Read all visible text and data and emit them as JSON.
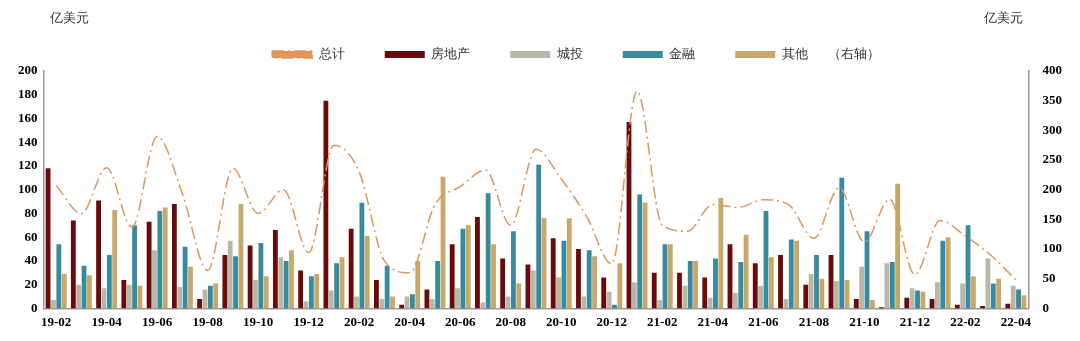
{
  "chart_data": {
    "type": "bar",
    "ylabel": "亿美元",
    "y2label": "亿美元",
    "categories": [
      "19-02",
      null,
      "19-04",
      null,
      "19-06",
      null,
      "19-08",
      null,
      "19-10",
      null,
      "19-12",
      null,
      "20-02",
      null,
      "20-04",
      null,
      "20-06",
      null,
      "20-08",
      null,
      "20-10",
      null,
      "20-12",
      null,
      "21-02",
      null,
      "21-04",
      null,
      "21-06",
      null,
      "21-08",
      null,
      "21-10",
      null,
      "21-12",
      null,
      "22-02",
      null,
      "22-04"
    ],
    "series": [
      {
        "name": "房地产",
        "color": "#6b0a0a",
        "values": [
          118,
          74,
          91,
          24,
          73,
          88,
          8,
          45,
          53,
          66,
          32,
          175,
          67,
          24,
          3,
          16,
          54,
          77,
          42,
          37,
          59,
          50,
          26,
          157,
          30,
          30,
          26,
          54,
          38,
          45,
          20,
          45,
          8,
          1,
          9,
          8,
          3,
          2,
          4
        ]
      },
      {
        "name": "城投",
        "color": "#b8b8a8",
        "values": [
          7,
          20,
          17,
          20,
          49,
          18,
          16,
          57,
          24,
          43,
          6,
          15,
          10,
          8,
          10,
          8,
          17,
          5,
          10,
          32,
          26,
          10,
          14,
          22,
          7,
          19,
          9,
          13,
          19,
          8,
          29,
          23,
          35,
          38,
          17,
          22,
          21,
          42,
          19
        ]
      },
      {
        "name": "金融",
        "color": "#3a8a9e",
        "values": [
          54,
          36,
          45,
          70,
          82,
          52,
          19,
          44,
          55,
          40,
          27,
          38,
          89,
          36,
          12,
          40,
          67,
          97,
          65,
          121,
          57,
          49,
          3,
          96,
          54,
          40,
          42,
          39,
          82,
          58,
          45,
          110,
          65,
          39,
          15,
          57,
          70,
          21,
          16
        ]
      },
      {
        "name": "其他",
        "color": "#c8a86a",
        "values": [
          29,
          28,
          83,
          19,
          85,
          35,
          21,
          88,
          27,
          49,
          29,
          43,
          61,
          10,
          40,
          111,
          70,
          54,
          21,
          76,
          76,
          44,
          38,
          89,
          54,
          40,
          93,
          62,
          43,
          57,
          25,
          24,
          7,
          105,
          14,
          60,
          27,
          25,
          11
        ]
      },
      {
        "name": "总计",
        "type": "line",
        "axis": "y2",
        "color": "#e0955a",
        "line_style": "dashed",
        "marker": "none",
        "values": [
          207,
          160,
          237,
          137,
          290,
          193,
          64,
          236,
          160,
          200,
          94,
          275,
          230,
          80,
          60,
          175,
          205,
          233,
          140,
          268,
          218,
          155,
          75,
          366,
          140,
          130,
          175,
          170,
          183,
          175,
          118,
          203,
          112,
          184,
          57,
          148,
          122,
          90,
          48
        ]
      }
    ],
    "ylim": [
      0,
      200
    ],
    "yticks": [
      0,
      20,
      40,
      60,
      80,
      100,
      120,
      140,
      160,
      180,
      200
    ],
    "y2lim": [
      0,
      400
    ],
    "y2ticks": [
      0,
      50,
      100,
      150,
      200,
      250,
      300,
      350,
      400
    ],
    "annotations": [
      "（右轴）"
    ],
    "legend": "top",
    "grid": false
  }
}
